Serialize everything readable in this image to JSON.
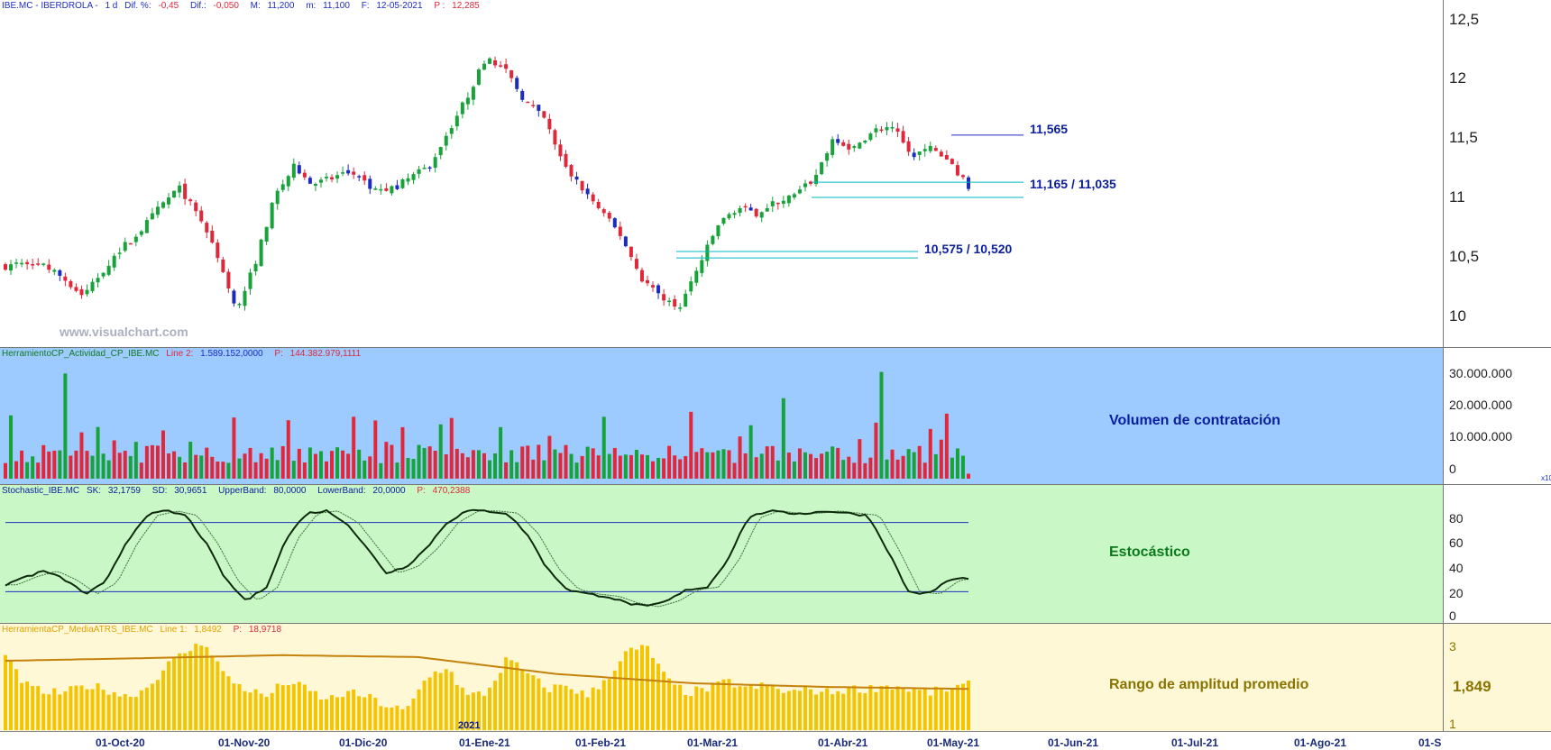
{
  "colors": {
    "up": "#17a23a",
    "down": "#e0283a",
    "down_blue": "#1c2cbf",
    "level": "#00b7c3",
    "volume_bg": "#9dcbff",
    "stoch_bg": "#c9f7c6",
    "atr_bg": "#fff8d7",
    "atr_bar": "#f4c400",
    "atr_avg": "#c4820d",
    "label_blue": "#0a1ea0",
    "label_green": "#0b7a1c",
    "label_olive": "#8a7300"
  },
  "main": {
    "header": {
      "ticker": "IBE.MC - IBERDROLA -",
      "tf": "1 d",
      "dif_pct_label": "Dif. %:",
      "dif_pct": "-0,45",
      "dif_label": "Dif.:",
      "dif": "-0,050",
      "max_label": "M:",
      "max": "11,200",
      "min_label": "m:",
      "min": "11,100",
      "date_label": "F:",
      "date": "12-05-2021",
      "p_label": "P :",
      "p": "12,285"
    },
    "y_ticks": [
      "12,5",
      "12",
      "11,5",
      "11",
      "10,5",
      "10"
    ],
    "watermark": "www.visualchart.com",
    "levels": [
      {
        "label": "11,565"
      },
      {
        "label": "11,165 / 11,035"
      },
      {
        "label": "10,575 / 10,520"
      }
    ]
  },
  "volume": {
    "header": {
      "name": "HerramientoCP_Actividad_CP_IBE.MC",
      "line_label": "Line 2:",
      "line": "1.589.152,0000",
      "p_label": "P:",
      "p": "144.382.979,1111"
    },
    "y_ticks": [
      "30.000.000",
      "20.000.000",
      "10.000.000",
      "0"
    ],
    "scale_note": "x10",
    "title": "Volumen de contratación"
  },
  "stoch": {
    "header": {
      "name": "Stochastic_IBE.MC",
      "sk_label": "SK:",
      "sk": "32,1759",
      "sd_label": "SD:",
      "sd": "30,9651",
      "ub_label": "UpperBand:",
      "ub": "80,0000",
      "lb_label": "LowerBand:",
      "lb": "20,0000",
      "p_label": "P:",
      "p": "470,2388"
    },
    "y_ticks": [
      "80",
      "60",
      "40",
      "20",
      "0"
    ],
    "title": "Estocástico"
  },
  "atr": {
    "header": {
      "name": "HerramientaCP_MediaATRS_IBE.MC",
      "line_label": "Line 1:",
      "line": "1,8492",
      "p_label": "P:",
      "p": "18,9718"
    },
    "y_ticks": [
      "3",
      "1"
    ],
    "current": "1,849",
    "title": "Rango de amplitud promedio",
    "year_marker": "2021"
  },
  "x_axis": [
    "01-Oct-20",
    "01-Nov-20",
    "01-Dic-20",
    "01-Ene-21",
    "01-Feb-21",
    "01-Mar-21",
    "01-Abr-21",
    "01-May-21",
    "01-Jun-21",
    "01-Jul-21",
    "01-Ago-21",
    "01-S"
  ],
  "chart_data": [
    {
      "type": "candlestick",
      "title": "IBE.MC - IBERDROLA",
      "ylim": [
        9.8,
        12.6
      ],
      "x": [
        "01-Oct-20",
        "01-Nov-20",
        "01-Dic-20",
        "01-Ene-21",
        "01-Feb-21",
        "01-Mar-21",
        "01-Abr-21",
        "01-May-21"
      ],
      "close_path": [
        10.45,
        10.5,
        10.45,
        10.35,
        10.2,
        10.4,
        10.6,
        10.75,
        10.95,
        11.12,
        10.9,
        10.55,
        10.05,
        10.5,
        11.05,
        11.3,
        11.15,
        11.2,
        11.25,
        11.1,
        11.1,
        11.2,
        11.3,
        11.6,
        11.9,
        12.25,
        12.1,
        11.85,
        11.7,
        11.3,
        11.1,
        10.9,
        10.7,
        10.35,
        10.2,
        10.1,
        10.45,
        10.8,
        10.95,
        10.9,
        11.0,
        11.05,
        11.2,
        11.55,
        11.45,
        11.6,
        11.65,
        11.4,
        11.45,
        11.35,
        11.12
      ],
      "levels": [
        11.565,
        11.165,
        11.035,
        10.575,
        10.52
      ]
    },
    {
      "type": "bar",
      "title": "Volumen de contratación",
      "ylim": [
        0,
        37000000
      ]
    },
    {
      "type": "line",
      "title": "Estocástico",
      "ylim": [
        0,
        100
      ],
      "bands": [
        80,
        20
      ],
      "sk": [
        26,
        33,
        38,
        30,
        18,
        28,
        62,
        86,
        90,
        86,
        62,
        30,
        12,
        24,
        66,
        88,
        90,
        80,
        58,
        36,
        42,
        58,
        80,
        90,
        90,
        88,
        70,
        40,
        22,
        18,
        16,
        10,
        7,
        12,
        22,
        24,
        48,
        84,
        90,
        88,
        88,
        90,
        88,
        86,
        55,
        20,
        18,
        30,
        32
      ]
    },
    {
      "type": "bar",
      "title": "Rango de amplitud promedio",
      "ylim": [
        0.8,
        3.3
      ],
      "current": 1.849,
      "avg_level": [
        2.65,
        2.72,
        2.8,
        2.75,
        2.3,
        2.05,
        1.95,
        1.9
      ]
    }
  ]
}
